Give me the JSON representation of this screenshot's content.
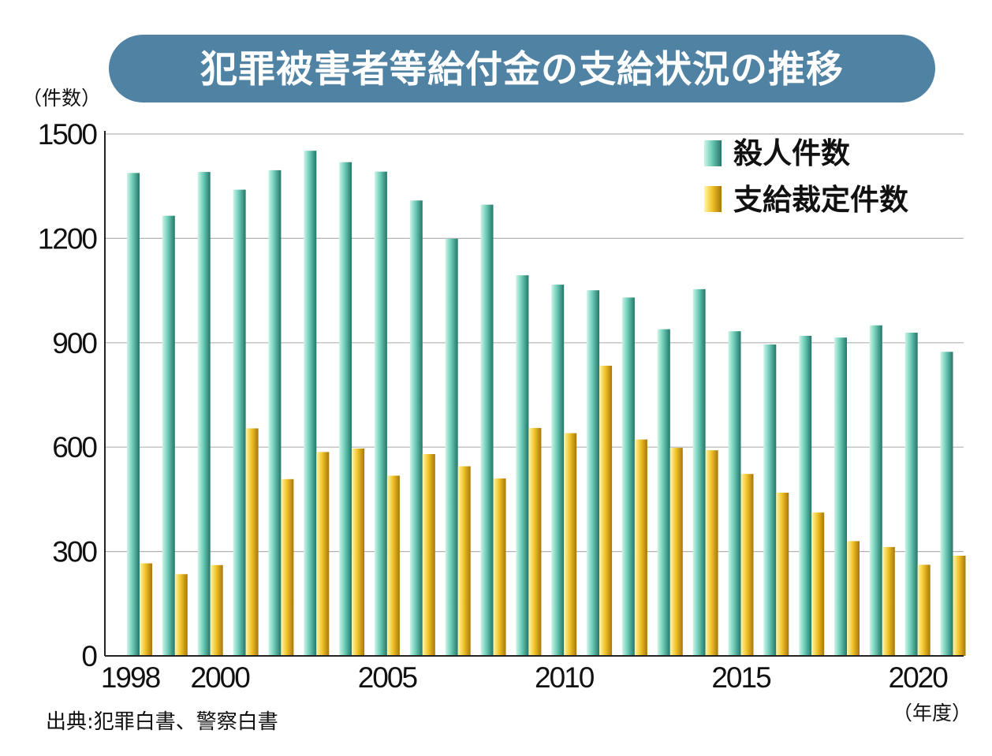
{
  "title": "犯罪被害者等給付金の支給状況の推移",
  "y_unit": "（件数）",
  "x_unit": "（年度）",
  "source": "出典:犯罪白書、警察白書",
  "colors": {
    "title_bg": "#4f82a3",
    "murder_light": "#bdf0e0",
    "murder_mid": "#5fc0ab",
    "murder_dark": "#277a6b",
    "award_light": "#fff3a8",
    "award_mid": "#f2c529",
    "award_dark": "#b07d0a",
    "grid": "#b3b3b3",
    "axis": "#222222"
  },
  "chart_data": {
    "type": "bar",
    "ylim": [
      0,
      1500
    ],
    "yticks": [
      0,
      300,
      600,
      900,
      1200,
      1500
    ],
    "years": [
      1998,
      1999,
      2000,
      2001,
      2002,
      2003,
      2004,
      2005,
      2006,
      2007,
      2008,
      2009,
      2010,
      2011,
      2012,
      2013,
      2014,
      2015,
      2016,
      2017,
      2018,
      2019,
      2020,
      2021
    ],
    "xtick_labels": [
      {
        "year": 1998,
        "label": "1998"
      },
      {
        "year": 2000,
        "label": "2000"
      },
      {
        "year": 2005,
        "label": "2005"
      },
      {
        "year": 2010,
        "label": "2010"
      },
      {
        "year": 2015,
        "label": "2015"
      },
      {
        "year": 2020,
        "label": "2020"
      }
    ],
    "grid": true,
    "legend_position": "top-right",
    "series": [
      {
        "name": "殺人件数",
        "color": "#5fc0ab",
        "values": [
          1388,
          1265,
          1391,
          1340,
          1396,
          1452,
          1419,
          1392,
          1309,
          1199,
          1297,
          1094,
          1067,
          1051,
          1030,
          939,
          1054,
          933,
          895,
          920,
          915,
          950,
          929,
          874
        ]
      },
      {
        "name": "支給裁定件数",
        "color": "#f2c529",
        "values": [
          266,
          235,
          261,
          654,
          508,
          586,
          596,
          518,
          580,
          545,
          510,
          655,
          640,
          834,
          622,
          598,
          591,
          523,
          469,
          412,
          330,
          313,
          262,
          288
        ]
      }
    ]
  }
}
